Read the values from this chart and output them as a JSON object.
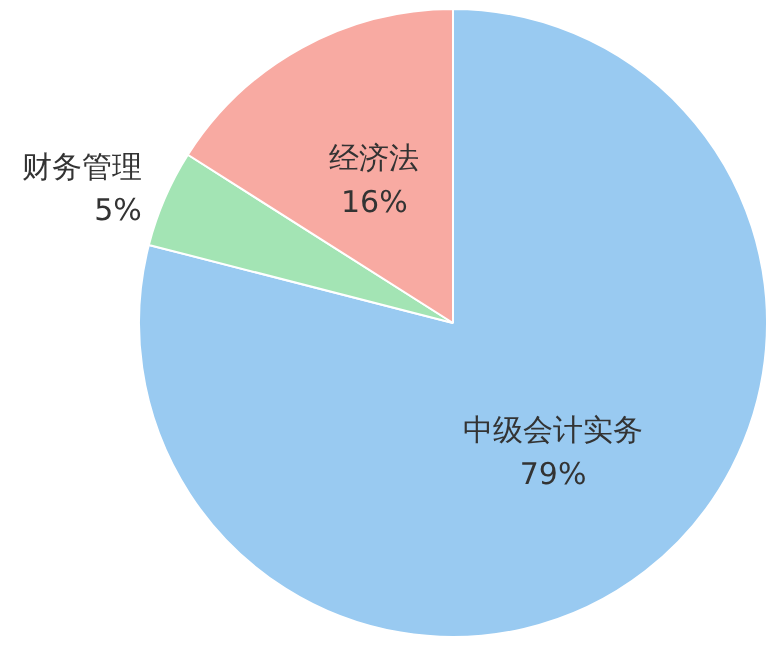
{
  "chart_data": {
    "type": "pie",
    "categories": [
      "中级会计实务",
      "财务管理",
      "经济法"
    ],
    "values": [
      79,
      5,
      16
    ],
    "colors": [
      "#99caf1",
      "#a3e4b4",
      "#f8aaa2"
    ],
    "value_labels": [
      "79%",
      "5%",
      "16%"
    ]
  }
}
